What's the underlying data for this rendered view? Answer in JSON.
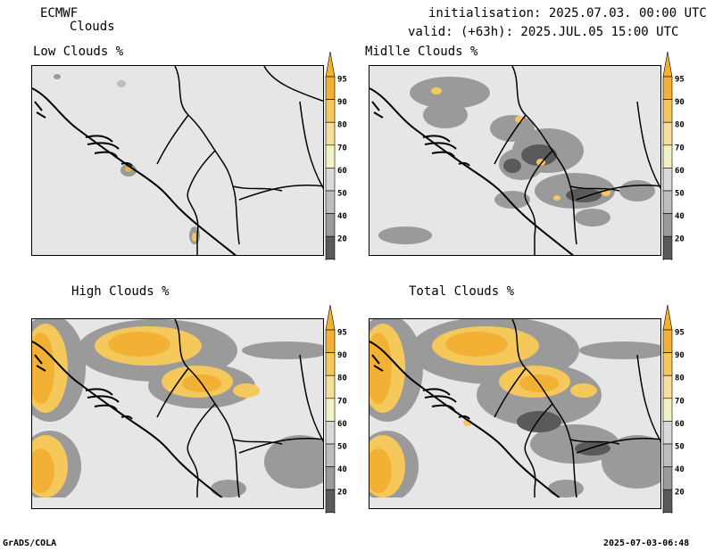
{
  "header": {
    "model": "ECMWF",
    "product": "Clouds",
    "init": "initialisation: 2025.07.03. 00:00 UTC",
    "valid": "valid: (+63h): 2025.JUL.05 15:00 UTC"
  },
  "panels": [
    {
      "id": "low",
      "title": "Low Clouds %"
    },
    {
      "id": "mid",
      "title": "Midlle Clouds %"
    },
    {
      "id": "high",
      "title": "High Clouds %"
    },
    {
      "id": "total",
      "title": "Total Clouds %"
    }
  ],
  "colorbar": {
    "levels": [
      "95",
      "90",
      "80",
      "70",
      "60",
      "50",
      "40",
      "20"
    ],
    "colors": {
      "95": "#f2b134",
      "90": "#f5c85c",
      "80": "#f5dd9a",
      "70": "#f2f2c4",
      "60": "#d9d9d9",
      "50": "#bdbdbd",
      "40": "#9a9a9a",
      "20": "#5a5a5a"
    }
  },
  "footer": {
    "left": "GrADS/COLA",
    "right": "2025-07-03-06:48"
  }
}
